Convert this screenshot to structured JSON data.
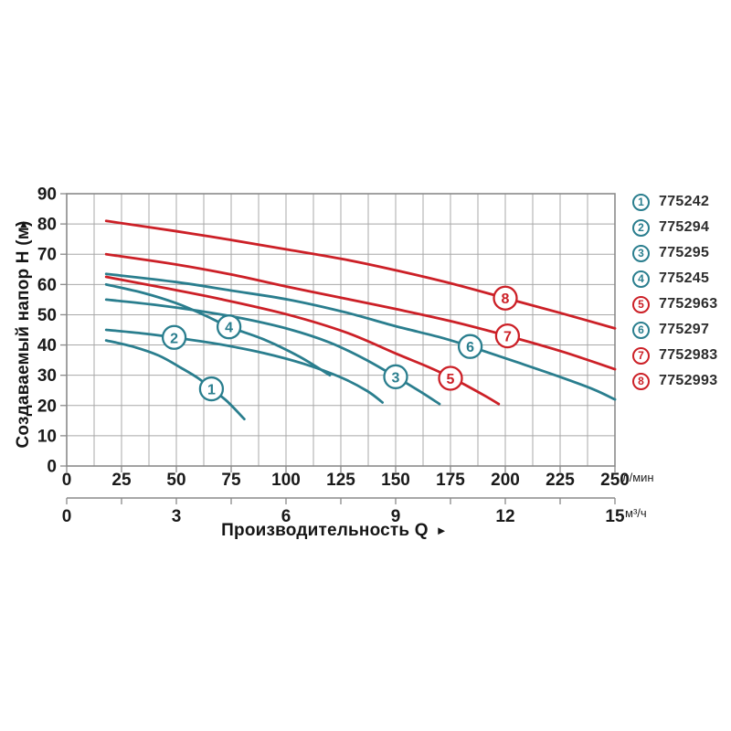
{
  "chart_data": {
    "type": "line",
    "y_axis": {
      "label": "Создаваемый напор H (м)",
      "arrow": "▲",
      "min": 0,
      "max": 90,
      "step": 10
    },
    "x_axis": {
      "label": "Производительность Q",
      "arrow": "►",
      "primary": {
        "unit": "л/мин",
        "min": 0,
        "max": 250,
        "step": 25
      },
      "secondary": {
        "unit": "м³/ч",
        "min": 0,
        "max": 15,
        "step": 3,
        "tick_step": 1.5
      }
    },
    "grid": {
      "on": true,
      "x_minor_step": 12.5,
      "y_step": 10
    },
    "legend_position": "right",
    "colors": {
      "teal": "#2a7e8e",
      "red": "#cc2027"
    },
    "series": [
      {
        "id": "1",
        "code": "775242",
        "color": "teal",
        "label_at": [
          66,
          25.5
        ],
        "points": [
          [
            18,
            41.5
          ],
          [
            30,
            39.5
          ],
          [
            42,
            36.5
          ],
          [
            52,
            32.5
          ],
          [
            60,
            29
          ],
          [
            66,
            25.5
          ],
          [
            73,
            21.5
          ],
          [
            81,
            15.5
          ]
        ]
      },
      {
        "id": "2",
        "code": "775294",
        "color": "teal",
        "label_at": [
          49,
          42.5
        ],
        "points": [
          [
            18,
            45
          ],
          [
            35,
            43.8
          ],
          [
            49,
            42.5
          ],
          [
            70,
            40.2
          ],
          [
            90,
            37.3
          ],
          [
            108,
            33.8
          ],
          [
            125,
            29.3
          ],
          [
            137,
            24.8
          ],
          [
            144,
            21
          ]
        ]
      },
      {
        "id": "3",
        "code": "775295",
        "color": "teal",
        "label_at": [
          150,
          29.5
        ],
        "points": [
          [
            18,
            55
          ],
          [
            40,
            53.3
          ],
          [
            60,
            51.3
          ],
          [
            80,
            48.8
          ],
          [
            101,
            45.3
          ],
          [
            120,
            40.8
          ],
          [
            136,
            35.3
          ],
          [
            150,
            29.5
          ],
          [
            161,
            24.7
          ],
          [
            170,
            20.5
          ]
        ]
      },
      {
        "id": "4",
        "code": "775245",
        "color": "teal",
        "label_at": [
          74,
          46
        ],
        "points": [
          [
            18,
            60
          ],
          [
            35,
            57.2
          ],
          [
            50,
            53.8
          ],
          [
            63,
            49.8
          ],
          [
            74,
            46
          ],
          [
            90,
            41.8
          ],
          [
            106,
            36.2
          ],
          [
            120,
            30
          ]
        ]
      },
      {
        "id": "5",
        "code": "7752963",
        "color": "red",
        "label_at": [
          175,
          29
        ],
        "points": [
          [
            18,
            62.5
          ],
          [
            45,
            58.8
          ],
          [
            70,
            55.2
          ],
          [
            101,
            50
          ],
          [
            128,
            44
          ],
          [
            150,
            37.2
          ],
          [
            165,
            32.7
          ],
          [
            176,
            29
          ],
          [
            190,
            23.5
          ],
          [
            197,
            20.5
          ]
        ]
      },
      {
        "id": "6",
        "code": "775297",
        "color": "teal",
        "label_at": [
          184,
          39.5
        ],
        "points": [
          [
            18,
            63.5
          ],
          [
            50,
            60.8
          ],
          [
            75,
            58
          ],
          [
            101,
            55
          ],
          [
            127,
            50.8
          ],
          [
            150,
            46.2
          ],
          [
            170,
            42.6
          ],
          [
            184,
            39.5
          ],
          [
            205,
            34.4
          ],
          [
            224,
            29.7
          ],
          [
            240,
            25.4
          ],
          [
            250,
            22
          ]
        ]
      },
      {
        "id": "7",
        "code": "7752983",
        "color": "red",
        "label_at": [
          201,
          43
        ],
        "points": [
          [
            18,
            70
          ],
          [
            50,
            66.6
          ],
          [
            75,
            63.3
          ],
          [
            101,
            59.2
          ],
          [
            128,
            55.2
          ],
          [
            150,
            51.9
          ],
          [
            175,
            47.9
          ],
          [
            201,
            43
          ],
          [
            226,
            37.8
          ],
          [
            250,
            32
          ]
        ]
      },
      {
        "id": "8",
        "code": "7752993",
        "color": "red",
        "label_at": [
          200,
          55.5
        ],
        "points": [
          [
            18,
            81
          ],
          [
            50,
            77.6
          ],
          [
            75,
            74.7
          ],
          [
            101,
            71.5
          ],
          [
            128,
            68.1
          ],
          [
            150,
            64.7
          ],
          [
            175,
            60.4
          ],
          [
            200,
            55.5
          ],
          [
            225,
            50.6
          ],
          [
            250,
            45.5
          ]
        ]
      }
    ]
  }
}
